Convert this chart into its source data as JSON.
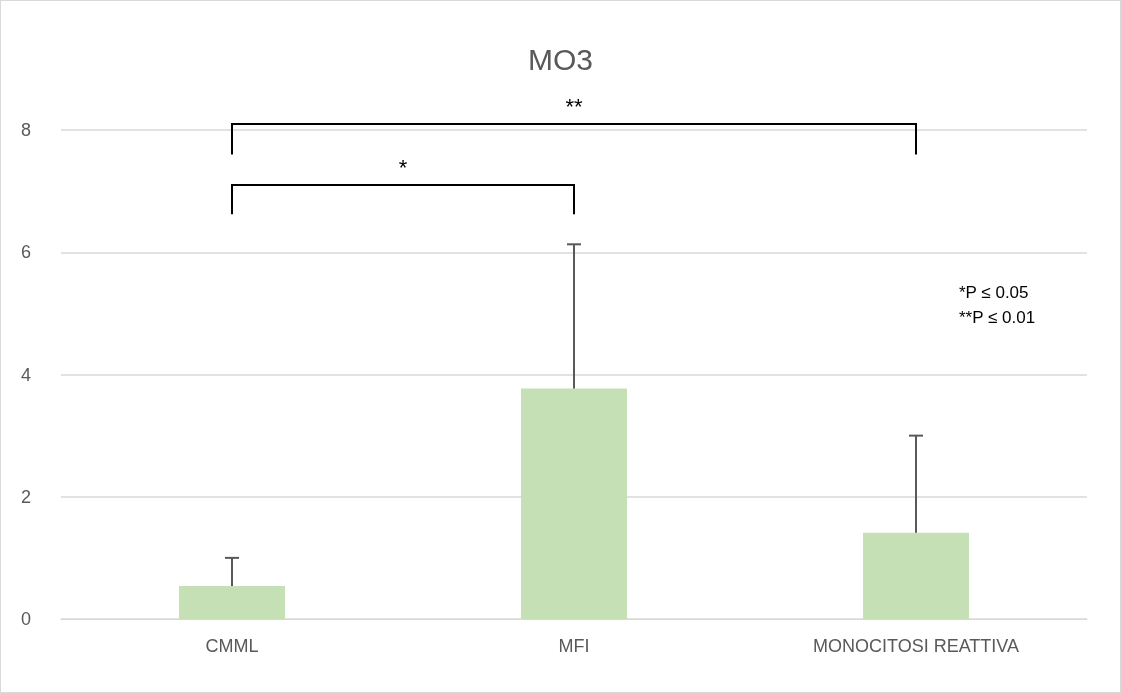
{
  "chart_data": {
    "type": "bar",
    "title": "MO3",
    "categories": [
      "CMML",
      "MFI",
      "MONOCITOSI REATTIVA"
    ],
    "values": [
      0.54,
      3.77,
      1.41
    ],
    "errors": [
      [
        0.54,
        1.0
      ],
      [
        3.77,
        6.13
      ],
      [
        1.41,
        3.0
      ]
    ],
    "color": "#c5e0b4",
    "ylim": [
      0,
      8
    ],
    "yticks": [
      0,
      2,
      4,
      6,
      8
    ],
    "grid": "y",
    "annotations": [
      "*",
      "**",
      "*P ≤ 0.05",
      "**P ≤ 0.01"
    ]
  }
}
